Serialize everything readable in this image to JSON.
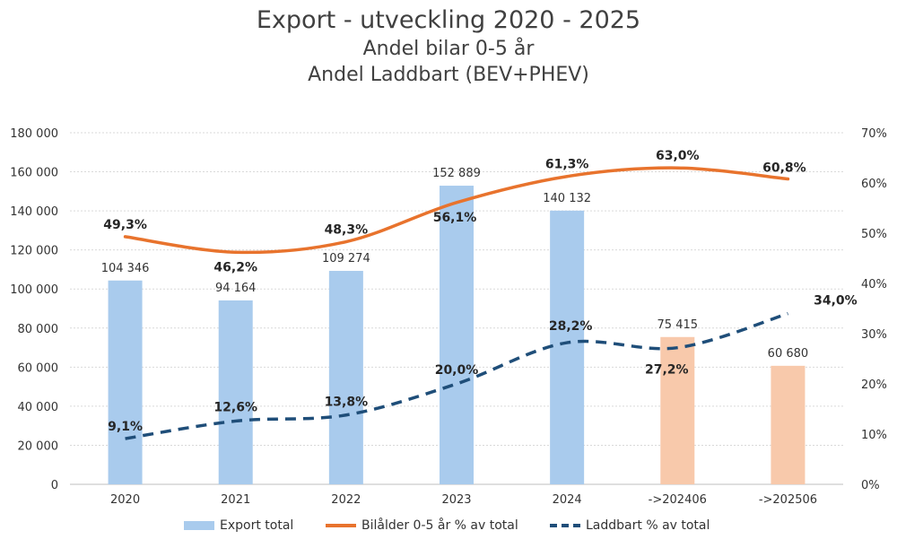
{
  "chart_data": {
    "type": "bar+line",
    "title": "Export - utveckling 2020 - 2025",
    "subtitle_1": "Andel bilar 0-5 år",
    "subtitle_2": "Andel Laddbart (BEV+PHEV)",
    "categories": [
      "2020",
      "2021",
      "2022",
      "2023",
      "2024",
      "->202406",
      "->202506"
    ],
    "y_left": {
      "min": 0,
      "max": 180000,
      "step": 20000,
      "tick_labels": [
        "0",
        "20 000",
        "40 000",
        "60 000",
        "80 000",
        "100 000",
        "120 000",
        "140 000",
        "160 000",
        "180 000"
      ]
    },
    "y_right": {
      "min": 0,
      "max": 70,
      "step": 10,
      "tick_labels": [
        "0%",
        "10%",
        "20%",
        "30%",
        "40%",
        "50%",
        "60%",
        "70%"
      ]
    },
    "grid": true,
    "legend_position": "bottom",
    "series": [
      {
        "name": "Export total",
        "kind": "bar",
        "axis": "left",
        "values": [
          104346,
          94164,
          109274,
          152889,
          140132,
          75415,
          60680
        ],
        "labels": [
          "104 346",
          "94 164",
          "109 274",
          "152 889",
          "140 132",
          "75 415",
          "60 680"
        ],
        "colors": [
          "#a9cbed",
          "#a9cbed",
          "#a9cbed",
          "#a9cbed",
          "#a9cbed",
          "#f8c9ab",
          "#f8c9ab"
        ]
      },
      {
        "name": "Bilålder 0-5 år % av total",
        "kind": "line",
        "axis": "right",
        "values": [
          49.3,
          46.2,
          48.3,
          56.1,
          61.3,
          63.0,
          60.8
        ],
        "labels": [
          "49,3%",
          "46,2%",
          "48,3%",
          "56,1%",
          "61,3%",
          "63,0%",
          "60,8%"
        ],
        "color": "#e8732d",
        "style": "solid"
      },
      {
        "name": "Laddbart % av total",
        "kind": "line",
        "axis": "right",
        "values": [
          9.1,
          12.6,
          13.8,
          20.0,
          28.2,
          27.2,
          34.0
        ],
        "labels": [
          "9,1%",
          "12,6%",
          "13,8%",
          "20,0%",
          "28,2%",
          "27,2%",
          "34,0%"
        ],
        "color": "#1f4e79",
        "style": "dashed"
      }
    ]
  }
}
